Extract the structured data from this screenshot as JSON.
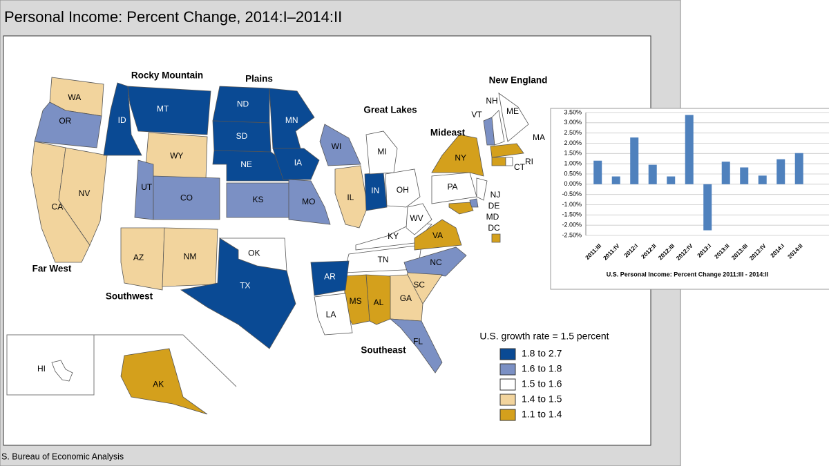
{
  "title": "Personal Income: Percent Change, 2014:I–2014:II",
  "source": "S. Bureau of Economic Analysis",
  "map": {
    "regions": [
      "Rocky Mountain",
      "Plains",
      "New England",
      "Great Lakes",
      "Mideast",
      "Far West",
      "Southwest",
      "Southeast"
    ],
    "states": [
      {
        "label": "WA",
        "color": "#f2d49d"
      },
      {
        "label": "OR",
        "color": "#7b90c4"
      },
      {
        "label": "CA",
        "color": "#f2d49d"
      },
      {
        "label": "NV",
        "color": "#f2d49d"
      },
      {
        "label": "ID",
        "color": "#0a4a94"
      },
      {
        "label": "MT",
        "color": "#0a4a94"
      },
      {
        "label": "WY",
        "color": "#f2d49d"
      },
      {
        "label": "UT",
        "color": "#7b90c4"
      },
      {
        "label": "CO",
        "color": "#7b90c4"
      },
      {
        "label": "AZ",
        "color": "#f2d49d"
      },
      {
        "label": "NM",
        "color": "#f2d49d"
      },
      {
        "label": "TX",
        "color": "#0a4a94"
      },
      {
        "label": "OK",
        "color": "#ffffff"
      },
      {
        "label": "ND",
        "color": "#0a4a94"
      },
      {
        "label": "SD",
        "color": "#0a4a94"
      },
      {
        "label": "NE",
        "color": "#0a4a94"
      },
      {
        "label": "KS",
        "color": "#7b90c4"
      },
      {
        "label": "MN",
        "color": "#0a4a94"
      },
      {
        "label": "IA",
        "color": "#0a4a94"
      },
      {
        "label": "MO",
        "color": "#7b90c4"
      },
      {
        "label": "WI",
        "color": "#7b90c4"
      },
      {
        "label": "IL",
        "color": "#f2d49d"
      },
      {
        "label": "IN",
        "color": "#0a4a94"
      },
      {
        "label": "MI",
        "color": "#ffffff"
      },
      {
        "label": "OH",
        "color": "#ffffff"
      },
      {
        "label": "KY",
        "color": "#ffffff"
      },
      {
        "label": "TN",
        "color": "#ffffff"
      },
      {
        "label": "WV",
        "color": "#ffffff"
      },
      {
        "label": "VA",
        "color": "#d4a01c"
      },
      {
        "label": "NC",
        "color": "#7b90c4"
      },
      {
        "label": "SC",
        "color": "#f2d49d"
      },
      {
        "label": "GA",
        "color": "#f2d49d"
      },
      {
        "label": "AL",
        "color": "#d4a01c"
      },
      {
        "label": "MS",
        "color": "#d4a01c"
      },
      {
        "label": "AR",
        "color": "#0a4a94"
      },
      {
        "label": "LA",
        "color": "#ffffff"
      },
      {
        "label": "FL",
        "color": "#7b90c4"
      },
      {
        "label": "PA",
        "color": "#ffffff"
      },
      {
        "label": "NY",
        "color": "#d4a01c"
      },
      {
        "label": "NJ",
        "color": "#ffffff"
      },
      {
        "label": "DE",
        "color": "#7b90c4"
      },
      {
        "label": "MD",
        "color": "#d4a01c"
      },
      {
        "label": "DC",
        "color": "#d4a01c"
      },
      {
        "label": "VT",
        "color": "#7b90c4"
      },
      {
        "label": "NH",
        "color": "#ffffff"
      },
      {
        "label": "ME",
        "color": "#ffffff"
      },
      {
        "label": "MA",
        "color": "#d4a01c"
      },
      {
        "label": "CT",
        "color": "#d4a01c"
      },
      {
        "label": "RI",
        "color": "#ffffff"
      },
      {
        "label": "HI",
        "color": "#ffffff"
      },
      {
        "label": "AK",
        "color": "#d4a01c"
      }
    ],
    "legend": {
      "title": "U.S. growth rate = 1.5 percent",
      "items": [
        {
          "label": "1.8 to 2.7",
          "color": "#0a4a94"
        },
        {
          "label": "1.6 to 1.8",
          "color": "#7b90c4"
        },
        {
          "label": "1.5 to 1.6",
          "color": "#ffffff"
        },
        {
          "label": "1.4 to 1.5",
          "color": "#f2d49d"
        },
        {
          "label": "1.1 to 1.4",
          "color": "#d4a01c"
        }
      ]
    }
  },
  "chart_data": {
    "type": "bar",
    "xlabel": "U.S. Personal Income: Percent Change 2011:III - 2014:II",
    "categories": [
      "2011:III",
      "2011:IV",
      "2012:I",
      "2012:II",
      "2012:III",
      "2012:IV",
      "2013:I",
      "2013:II",
      "2013:III",
      "2013:IV",
      "2014:I",
      "2014:II"
    ],
    "values": [
      1.15,
      0.38,
      2.28,
      0.95,
      0.38,
      3.38,
      -2.25,
      1.1,
      0.82,
      0.42,
      1.22,
      1.52
    ],
    "color": "#4f81bd",
    "ylim": [
      -2.5,
      3.5
    ],
    "yticks": [
      {
        "value": 3.5,
        "label": "3.50%"
      },
      {
        "value": 3.0,
        "label": "3.00%"
      },
      {
        "value": 2.5,
        "label": "2.50%"
      },
      {
        "value": 2.0,
        "label": "2.00%"
      },
      {
        "value": 1.5,
        "label": "1.50%"
      },
      {
        "value": 1.0,
        "label": "1.00%"
      },
      {
        "value": 0.5,
        "label": "0.50%"
      },
      {
        "value": 0.0,
        "label": "0.00%"
      },
      {
        "value": -0.5,
        "label": "-0.50%"
      },
      {
        "value": -1.0,
        "label": "-1.00%"
      },
      {
        "value": -1.5,
        "label": "-1.50%"
      },
      {
        "value": -2.0,
        "label": "-2.00%"
      },
      {
        "value": -2.5,
        "label": "-2.50%"
      }
    ],
    "grid": true
  }
}
